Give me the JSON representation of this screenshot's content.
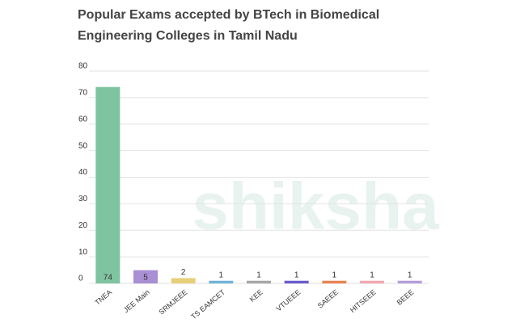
{
  "chart_data": {
    "type": "bar",
    "title": "Popular Exams accepted by BTech in Biomedical Engineering Colleges in Tamil Nadu",
    "watermark": "shiksha",
    "categories": [
      "TNEA",
      "JEE Main",
      "SRMJEEE",
      "TS EAMCET",
      "KEE",
      "VTUEEE",
      "SAEEE",
      "HITSEEE",
      "BEEE"
    ],
    "values": [
      74,
      5,
      2,
      1,
      1,
      1,
      1,
      1,
      1
    ],
    "colors": [
      "#7fc4a0",
      "#a98fd3",
      "#e6cf7a",
      "#6fb3d6",
      "#a6a6a6",
      "#6a5acd",
      "#e8834f",
      "#f0a8b0",
      "#b39ddb"
    ],
    "ylim": [
      0,
      80
    ],
    "yticks": [
      0,
      10,
      20,
      30,
      40,
      50,
      60,
      70,
      80
    ],
    "grid": true
  }
}
